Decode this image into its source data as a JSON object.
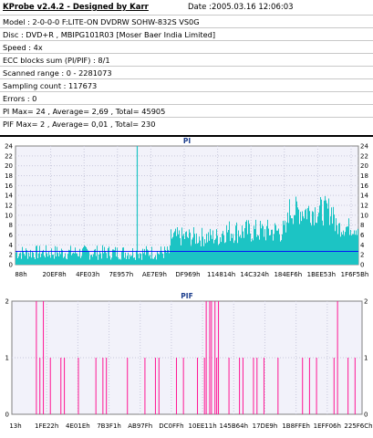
{
  "header": {
    "app_title": "KProbe v2.4.2 - Designed by Karr",
    "date_label": "Date :",
    "date_value": "2005.03.16 12:06:03"
  },
  "info_lines": [
    "Model : 2-0-0-0 F:LITE-ON DVDRW SOHW-832S  VS0G",
    "Disc : DVD+R , MBIPG101R03 [Moser Baer India Limited]",
    "Speed : 4x",
    "ECC blocks sum (PI/PIF) : 8/1",
    "Scanned range : 0 - 2281073",
    "Sampling count : 117673",
    "Errors : 0",
    "PI Max= 24 , Average= 2,69 , Total= 45905",
    "PIF Max= 2 , Average= 0,01 , Total= 230"
  ],
  "colors": {
    "pi_fill": "#1cc4c4",
    "pif_line": "#ff1493",
    "plot_bg": "#f2f2fa",
    "grid": "#c8c8dc",
    "title": "#1a3c8c"
  },
  "chart_data": [
    {
      "type": "area",
      "title": "PI",
      "ylim": [
        0,
        24
      ],
      "yticks": [
        0,
        2,
        4,
        6,
        8,
        10,
        12,
        14,
        16,
        18,
        20,
        22,
        24
      ],
      "x_tick_labels": [
        "88h",
        "20EF8h",
        "4FE03h",
        "7E957h",
        "AE7E9h",
        "DF969h",
        "114814h",
        "14C324h",
        "184EF6h",
        "1BEE53h",
        "1F6F5Bh"
      ],
      "max": 24,
      "average": 2.69,
      "spike_max": 24,
      "segments": [
        {
          "from": 0.0,
          "to": 0.45,
          "level": 2,
          "noise": 3
        },
        {
          "from": 0.45,
          "to": 0.6,
          "level": 5,
          "noise": 4
        },
        {
          "from": 0.6,
          "to": 0.79,
          "level": 6,
          "noise": 5
        },
        {
          "from": 0.79,
          "to": 0.93,
          "level": 10,
          "noise": 6
        },
        {
          "from": 0.93,
          "to": 1.0,
          "level": 7,
          "noise": 4
        }
      ],
      "grid": true
    },
    {
      "type": "bar",
      "title": "PIF",
      "ylim": [
        0,
        2
      ],
      "yticks": [
        0,
        1,
        2
      ],
      "x_tick_labels": [
        "13h",
        "1FE22h",
        "4E01Eh",
        "7B3F1h",
        "AB97Fh",
        "DC0FFh",
        "10EE11h",
        "145B64h",
        "17DE9h",
        "1B8FFEh",
        "1EFF06h",
        "225F6Ch"
      ],
      "max": 2,
      "average": 0.01,
      "spikes": [
        {
          "x": 0.07,
          "v": 2
        },
        {
          "x": 0.08,
          "v": 1
        },
        {
          "x": 0.09,
          "v": 2
        },
        {
          "x": 0.11,
          "v": 1
        },
        {
          "x": 0.14,
          "v": 1
        },
        {
          "x": 0.15,
          "v": 1
        },
        {
          "x": 0.19,
          "v": 1
        },
        {
          "x": 0.24,
          "v": 1
        },
        {
          "x": 0.26,
          "v": 1
        },
        {
          "x": 0.27,
          "v": 1
        },
        {
          "x": 0.33,
          "v": 1
        },
        {
          "x": 0.38,
          "v": 1
        },
        {
          "x": 0.41,
          "v": 1
        },
        {
          "x": 0.42,
          "v": 1
        },
        {
          "x": 0.47,
          "v": 1
        },
        {
          "x": 0.49,
          "v": 1
        },
        {
          "x": 0.53,
          "v": 1
        },
        {
          "x": 0.55,
          "v": 1
        },
        {
          "x": 0.555,
          "v": 2
        },
        {
          "x": 0.565,
          "v": 2
        },
        {
          "x": 0.57,
          "v": 2
        },
        {
          "x": 0.58,
          "v": 2
        },
        {
          "x": 0.585,
          "v": 1
        },
        {
          "x": 0.59,
          "v": 2
        },
        {
          "x": 0.62,
          "v": 1
        },
        {
          "x": 0.65,
          "v": 1
        },
        {
          "x": 0.66,
          "v": 1
        },
        {
          "x": 0.69,
          "v": 1
        },
        {
          "x": 0.7,
          "v": 1
        },
        {
          "x": 0.72,
          "v": 1
        },
        {
          "x": 0.76,
          "v": 1
        },
        {
          "x": 0.83,
          "v": 1
        },
        {
          "x": 0.85,
          "v": 1
        },
        {
          "x": 0.87,
          "v": 1
        },
        {
          "x": 0.92,
          "v": 1
        },
        {
          "x": 0.93,
          "v": 2
        },
        {
          "x": 0.96,
          "v": 1
        },
        {
          "x": 0.98,
          "v": 1
        }
      ],
      "grid": true
    }
  ]
}
